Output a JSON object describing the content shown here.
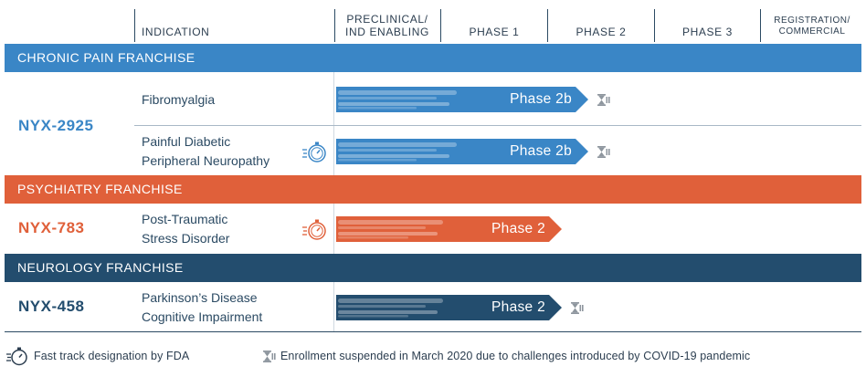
{
  "header": {
    "indication": "INDICATION",
    "preclinical": "PRECLINICAL/",
    "ind_enabling": "IND ENABLING",
    "phase1": "PHASE 1",
    "phase2": "PHASE 2",
    "phase3": "PHASE 3",
    "registration": "REGISTRATION/",
    "commercial": "COMMERCIAL"
  },
  "franchises": {
    "chronic_pain": {
      "name": "CHRONIC PAIN FRANCHISE",
      "color": "#3a86c6"
    },
    "psychiatry": {
      "name": "PSYCHIATRY FRANCHISE",
      "color": "#e0603a"
    },
    "neurology": {
      "name": "NEUROLOGY FRANCHISE",
      "color": "#234d6e"
    }
  },
  "programs": {
    "nyx2925": {
      "drug": "NYX-2925",
      "color": "#3a86c6",
      "indications": [
        {
          "line1": "Fibromyalgia",
          "line2": "",
          "stage": "Phase 2b",
          "fast_track": false,
          "suspended": true,
          "progress": 0.48
        },
        {
          "line1": "Painful Diabetic",
          "line2": "Peripheral Neuropathy",
          "stage": "Phase 2b",
          "fast_track": true,
          "suspended": true,
          "progress": 0.48
        }
      ]
    },
    "nyx783": {
      "drug": "NYX-783",
      "color": "#e0603a",
      "indications": [
        {
          "line1": "Post-Traumatic",
          "line2": "Stress Disorder",
          "stage": "Phase 2",
          "fast_track": true,
          "suspended": false,
          "progress": 0.43
        }
      ]
    },
    "nyx458": {
      "drug": "NYX-458",
      "color": "#234d6e",
      "indications": [
        {
          "line1": "Parkinson’s Disease",
          "line2": "Cognitive Impairment",
          "stage": "Phase 2",
          "fast_track": false,
          "suspended": true,
          "progress": 0.43
        }
      ]
    }
  },
  "legend": {
    "fast_track": "Fast track designation by FDA",
    "suspended": "Enrollment suspended in March 2020 due to challenges introduced by COVID-19 pandemic"
  },
  "icons": {
    "fast_track": "stopwatch-icon",
    "suspended": "hourglass-icon"
  }
}
